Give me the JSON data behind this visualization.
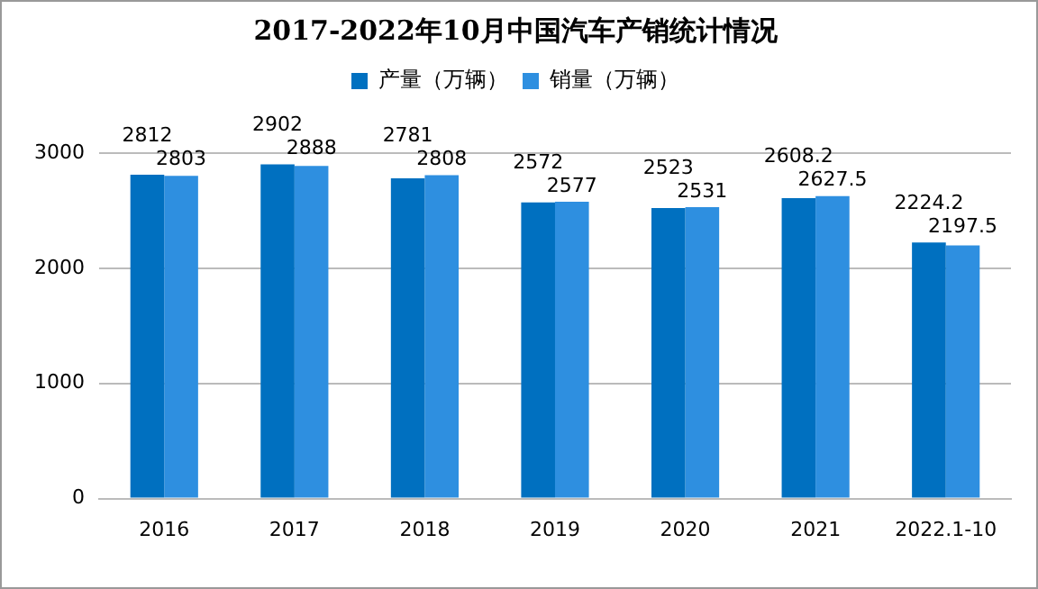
{
  "chart_data": {
    "type": "bar",
    "title": "2017-2022年10月中国汽车产销统计情况",
    "categories": [
      "2016",
      "2017",
      "2018",
      "2019",
      "2020",
      "2021",
      "2022.1-10"
    ],
    "series": [
      {
        "name": "产量（万辆）",
        "color": "#0070c0",
        "values": [
          2812,
          2902,
          2781,
          2572,
          2523,
          2608.2,
          2224.2
        ]
      },
      {
        "name": "销量（万辆）",
        "color": "#2e8fe0",
        "values": [
          2803,
          2888,
          2808,
          2577,
          2531,
          2627.5,
          2197.5
        ]
      }
    ],
    "ylim": [
      0,
      3000
    ],
    "yticks": [
      0,
      1000,
      2000,
      3000
    ],
    "grid": "y",
    "legend": "top",
    "data_labels": true
  }
}
